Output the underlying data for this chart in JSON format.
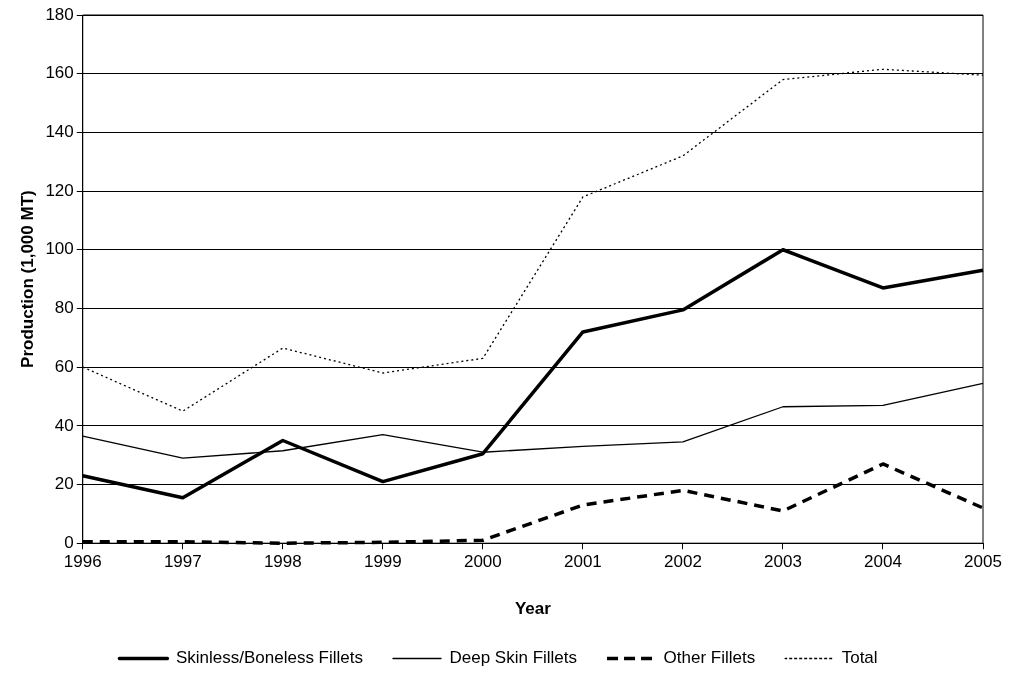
{
  "chart_data": {
    "type": "line",
    "xlabel": "Year",
    "ylabel": "Production (1,000 MT)",
    "x": [
      1996,
      1997,
      1998,
      1999,
      2000,
      2001,
      2002,
      2003,
      2004,
      2005
    ],
    "xlim": [
      1996,
      2005
    ],
    "xticks": [
      1996,
      1997,
      1998,
      1999,
      2000,
      2001,
      2002,
      2003,
      2004,
      2005
    ],
    "ylim": [
      0,
      180
    ],
    "yticks": [
      0,
      20,
      40,
      60,
      80,
      100,
      120,
      140,
      160,
      180
    ],
    "grid": "y",
    "legend": "bottom",
    "marker": "none",
    "series": [
      {
        "name": "Skinless/Boneless Fillets",
        "color": "#000000",
        "line_style": "solid",
        "values": [
          23,
          15.5,
          35,
          21,
          30.5,
          72,
          79.5,
          100,
          87,
          93
        ]
      },
      {
        "name": "Deep Skin Fillets",
        "color": "#000000",
        "line_style": "solid",
        "values": [
          36.5,
          29,
          31.5,
          37,
          31,
          33,
          34.5,
          46.5,
          47,
          54.5
        ]
      },
      {
        "name": "Other Fillets",
        "color": "#000000",
        "line_style": "dashed",
        "values": [
          0.5,
          0.5,
          0,
          0.3,
          1,
          13,
          18,
          11,
          27,
          12
        ]
      },
      {
        "name": "Total",
        "color": "#000000",
        "line_style": "dotted",
        "values": [
          60,
          45,
          66.5,
          58,
          63,
          118,
          132,
          158,
          161.5,
          159.5
        ]
      }
    ]
  }
}
